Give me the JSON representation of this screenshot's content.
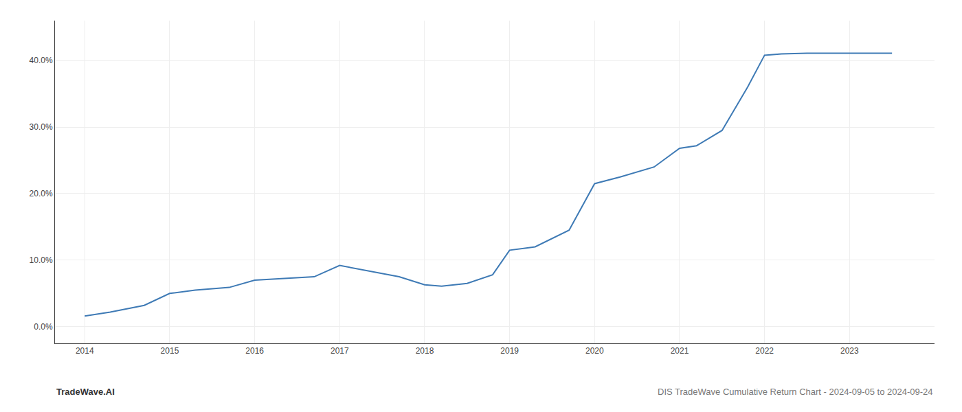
{
  "chart_data": {
    "type": "line",
    "x": [
      2014.0,
      2014.3,
      2014.7,
      2015.0,
      2015.3,
      2015.7,
      2016.0,
      2016.3,
      2016.7,
      2017.0,
      2017.3,
      2017.7,
      2018.0,
      2018.2,
      2018.5,
      2018.8,
      2019.0,
      2019.3,
      2019.7,
      2020.0,
      2020.3,
      2020.7,
      2021.0,
      2021.2,
      2021.5,
      2021.8,
      2022.0,
      2022.2,
      2022.5,
      2022.8,
      2023.0,
      2023.5
    ],
    "values": [
      1.6,
      2.2,
      3.2,
      5.0,
      5.5,
      5.9,
      7.0,
      7.2,
      7.5,
      9.2,
      8.5,
      7.5,
      6.3,
      6.1,
      6.5,
      7.8,
      11.5,
      12.0,
      14.5,
      21.5,
      22.5,
      24.0,
      26.8,
      27.2,
      29.5,
      36.0,
      40.8,
      41.0,
      41.1,
      41.1,
      41.1,
      41.1
    ],
    "color": "#3e7ab5",
    "xlim": [
      2013.65,
      2024.0
    ],
    "ylim": [
      -2.5,
      46.0
    ],
    "xticks": [
      2014,
      2015,
      2016,
      2017,
      2018,
      2019,
      2020,
      2021,
      2022,
      2023
    ],
    "yticks": [
      {
        "value": 0.0,
        "label": "0.0%"
      },
      {
        "value": 10.0,
        "label": "10.0%"
      },
      {
        "value": 20.0,
        "label": "20.0%"
      },
      {
        "value": 30.0,
        "label": "30.0%"
      },
      {
        "value": 40.0,
        "label": "40.0%"
      }
    ],
    "grid": true,
    "annotations": [
      "TradeWave.AI",
      "DIS TradeWave Cumulative Return Chart - 2024-09-05 to 2024-09-24"
    ]
  }
}
